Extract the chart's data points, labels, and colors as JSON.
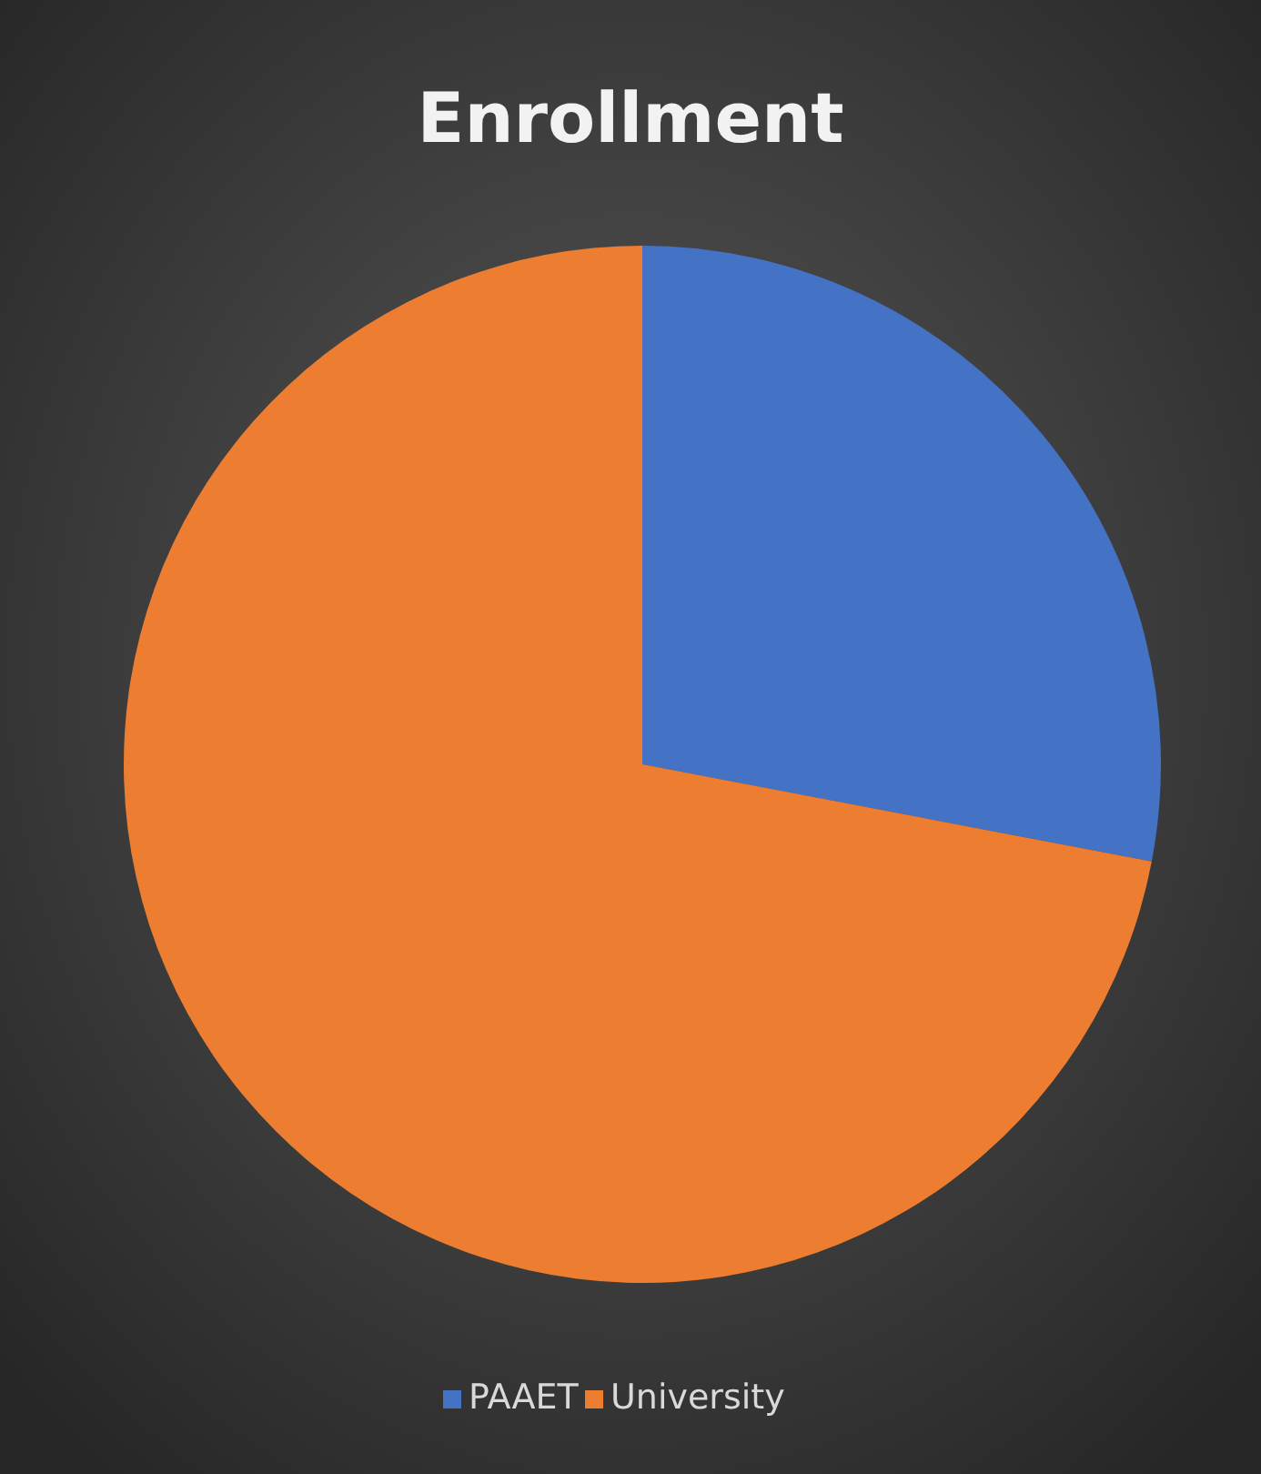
{
  "chart_data": {
    "type": "pie",
    "title": "Enrollment",
    "categories": [
      "PAAET",
      "University"
    ],
    "values": [
      28,
      72
    ],
    "colors": [
      "#4472c4",
      "#ed7d31"
    ],
    "legend": "bottom"
  }
}
